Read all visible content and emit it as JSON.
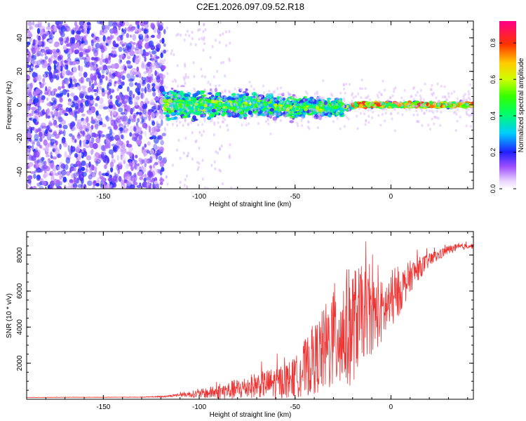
{
  "title": "C2E1.2026.097.09.52.R18",
  "colors": {
    "snr_line": "#ee3333",
    "scatter_base": "#7a1fff",
    "frame": "#000000"
  },
  "colorbar": {
    "label": "Normalized spectral amplitude",
    "ticks": [
      "0.0",
      "0.2",
      "0.4",
      "0.6",
      "0.8"
    ],
    "tick_values": [
      0.0,
      0.2,
      0.4,
      0.6,
      0.8
    ],
    "range": [
      0,
      0.92
    ]
  },
  "chart_data": [
    {
      "type": "heatmap",
      "name": "spectrogram",
      "xlabel": "Height of straight line (km)",
      "ylabel": "Frequency (Hz)",
      "xlim": [
        -190,
        43
      ],
      "ylim": [
        -50,
        50
      ],
      "xticks": [
        -150,
        -100,
        -50,
        0
      ],
      "xtick_labels": [
        "-150",
        "-100",
        "-50",
        "0"
      ],
      "yticks": [
        -40,
        -20,
        0,
        20,
        40
      ],
      "ytick_labels": [
        "-40",
        "-20",
        "0",
        "20",
        "40"
      ],
      "noise_region_km": [
        -190,
        -118
      ],
      "signal_region_km": [
        -118,
        43
      ],
      "signal_center_freq_hz": 0,
      "peak_amplitude_range_km": [
        -20,
        40
      ]
    },
    {
      "type": "line",
      "name": "snr",
      "xlabel": "Height of straight line (km)",
      "ylabel": "SNR (10 * v/v)",
      "xlim": [
        -190,
        43
      ],
      "ylim": [
        0,
        9300
      ],
      "xticks": [
        -150,
        -100,
        -50,
        0
      ],
      "xtick_labels": [
        "-150",
        "-100",
        "-50",
        "0"
      ],
      "yticks": [
        2000,
        4000,
        6000,
        8000
      ],
      "ytick_labels": [
        "2000",
        "4000",
        "6000",
        "8000"
      ],
      "series": [
        {
          "name": "SNR",
          "x": [
            -190,
            -170,
            -150,
            -130,
            -118,
            -110,
            -100,
            -90,
            -80,
            -70,
            -60,
            -50,
            -45,
            -40,
            -35,
            -30,
            -25,
            -20,
            -15,
            -10,
            -5,
            0,
            5,
            10,
            15,
            20,
            25,
            30,
            35,
            40,
            43
          ],
          "y": [
            100,
            110,
            110,
            120,
            150,
            250,
            300,
            400,
            550,
            800,
            900,
            1200,
            1700,
            2200,
            2700,
            3400,
            3700,
            4100,
            4800,
            4700,
            4800,
            5300,
            6000,
            6800,
            7300,
            7700,
            8000,
            8300,
            8400,
            8500,
            8500
          ],
          "noise_amp": [
            10,
            10,
            10,
            15,
            40,
            100,
            250,
            400,
            600,
            700,
            900,
            1100,
            1600,
            1900,
            2400,
            3000,
            3500,
            3300,
            2600,
            2200,
            1800,
            1500,
            1200,
            900,
            600,
            400,
            300,
            250,
            200,
            150,
            150
          ]
        }
      ]
    }
  ]
}
